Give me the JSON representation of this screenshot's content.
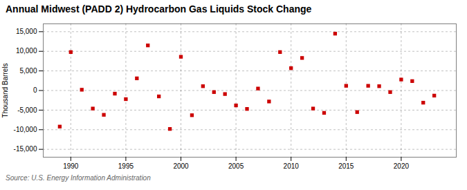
{
  "chart_data": {
    "type": "scatter",
    "title": "Annual Midwest (PADD 2) Hydrocarbon Gas Liquids Stock Change",
    "ylabel": "Thousand Barrels",
    "annotations": [
      "Source: U.S. Energy Information Administration"
    ],
    "x": [
      1989,
      1990,
      1991,
      1992,
      1993,
      1994,
      1995,
      1996,
      1997,
      1998,
      1999,
      2000,
      2001,
      2002,
      2003,
      2004,
      2005,
      2006,
      2007,
      2008,
      2009,
      2010,
      2011,
      2012,
      2013,
      2014,
      2015,
      2016,
      2017,
      2018,
      2019,
      2020,
      2021,
      2022,
      2023
    ],
    "values": [
      -9200,
      9800,
      200,
      -4600,
      -6200,
      -800,
      -2200,
      3100,
      11500,
      -1500,
      -9800,
      8600,
      -6300,
      1100,
      -400,
      -900,
      -3800,
      -4700,
      500,
      -2800,
      9800,
      5700,
      8300,
      -4600,
      -5700,
      14500,
      1200,
      -5500,
      1200,
      1100,
      -400,
      2800,
      2400,
      -3100,
      -1300
    ],
    "color": "#CC0000",
    "marker": "square",
    "grid": true,
    "xlim": [
      1987.5,
      2025
    ],
    "ylim": [
      -17000,
      17000
    ],
    "xticks": [
      1990,
      1995,
      2000,
      2005,
      2010,
      2015,
      2020
    ],
    "yticks": [
      {
        "value": -15000,
        "label": "-15,000"
      },
      {
        "value": -10000,
        "label": "-10,000"
      },
      {
        "value": -5000,
        "label": "-5,000"
      },
      0,
      {
        "value": 5000,
        "label": "5,000"
      },
      {
        "value": 10000,
        "label": "10,000"
      },
      {
        "value": 15000,
        "label": "15,000"
      }
    ]
  }
}
